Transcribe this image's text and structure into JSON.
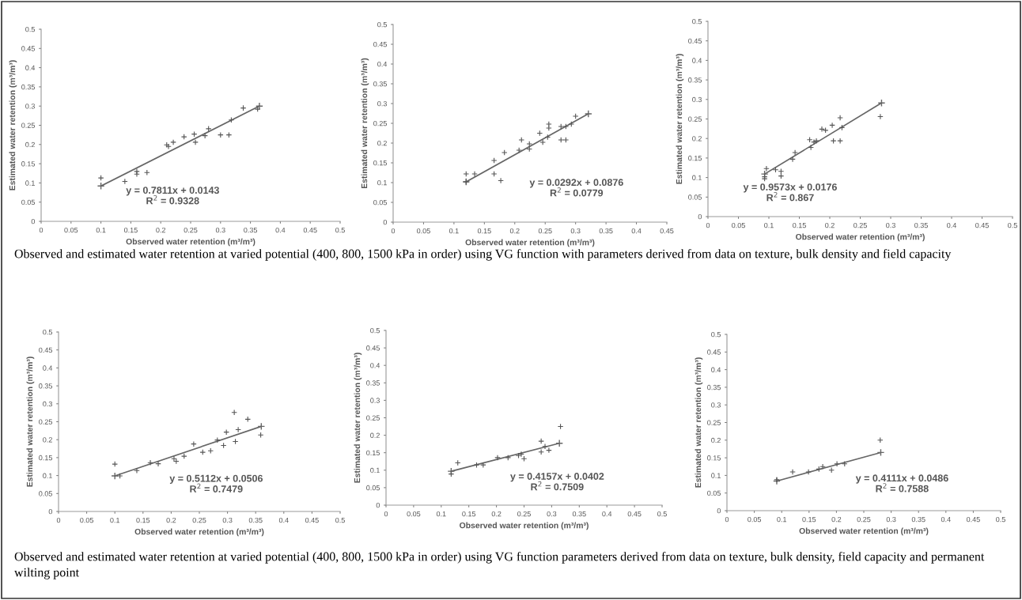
{
  "chart_data": [
    {
      "type": "scatter",
      "xlabel": "Observed water retention (m³/m³)",
      "ylabel": "Estimated water retention (m³/m³)",
      "xlim": [
        0,
        0.5
      ],
      "ylim": [
        0,
        0.5
      ],
      "xticks": [
        0,
        0.05,
        0.1,
        0.15,
        0.2,
        0.25,
        0.3,
        0.35,
        0.4,
        0.45,
        0.5
      ],
      "yticks": [
        0,
        0.05,
        0.1,
        0.15,
        0.2,
        0.25,
        0.3,
        0.35,
        0.4,
        0.45,
        0.5
      ],
      "marker": "cross",
      "grid": false,
      "series": [
        {
          "color": "#555555",
          "x": [
            0.1,
            0.14,
            0.16,
            0.16,
            0.177,
            0.21,
            0.213,
            0.221,
            0.239,
            0.256,
            0.258,
            0.274,
            0.28,
            0.3,
            0.314,
            0.318,
            0.338,
            0.362
          ],
          "values": [
            0.113,
            0.104,
            0.13,
            0.123,
            0.127,
            0.199,
            0.195,
            0.206,
            0.22,
            0.227,
            0.206,
            0.223,
            0.241,
            0.225,
            0.225,
            0.264,
            0.295,
            0.292
          ]
        },
        {
          "type": "line",
          "color": "#666666",
          "x": [
            0.1,
            0.365
          ],
          "values": [
            0.092,
            0.3
          ]
        }
      ],
      "annotations": [
        "y = 0.7811x + 0.0143\nR$^{2}$ = 0.9328",
        "Observed and estimated water retention at varied potential (400, 800, 1500 kPa in order) using VG function with parameters derived from data on texture, bulk density and field capacity"
      ]
    },
    {
      "type": "scatter",
      "xlabel": "Observed water retention (m³/m³)",
      "ylabel": "Estimated water retention (m³/m³)",
      "xlim": [
        0,
        0.45
      ],
      "ylim": [
        0,
        0.5
      ],
      "xticks": [
        0,
        0.05,
        0.1,
        0.15,
        0.2,
        0.25,
        0.3,
        0.35,
        0.4,
        0.45
      ],
      "yticks": [
        0,
        0.05,
        0.1,
        0.15,
        0.2,
        0.25,
        0.3,
        0.35,
        0.4,
        0.45,
        0.5
      ],
      "marker": "cross",
      "grid": false,
      "series": [
        {
          "color": "#555555",
          "x": [
            0.12,
            0.12,
            0.134,
            0.166,
            0.166,
            0.177,
            0.183,
            0.207,
            0.211,
            0.224,
            0.224,
            0.241,
            0.246,
            0.254,
            0.256,
            0.256,
            0.276,
            0.276,
            0.284,
            0.284,
            0.293,
            0.3
          ],
          "values": [
            0.102,
            0.122,
            0.122,
            0.156,
            0.122,
            0.105,
            0.176,
            0.182,
            0.208,
            0.198,
            0.185,
            0.225,
            0.202,
            0.215,
            0.248,
            0.238,
            0.242,
            0.208,
            0.208,
            0.242,
            0.248,
            0.268
          ]
        },
        {
          "type": "line",
          "color": "#666666",
          "x": [
            0.12,
            0.321
          ],
          "values": [
            0.102,
            0.274
          ]
        }
      ],
      "annotations": [
        "y = 0.0292x + 0.0876\nR$^{2}$ = 0.0779"
      ]
    },
    {
      "type": "scatter",
      "xlabel": "Observed water retention (m³/m³)",
      "ylabel": "Estimated water retention (m³/m³)",
      "xlim": [
        0,
        0.5
      ],
      "ylim": [
        0,
        0.5
      ],
      "xticks": [
        0,
        0.05,
        0.1,
        0.15,
        0.2,
        0.25,
        0.3,
        0.35,
        0.4,
        0.45,
        0.5
      ],
      "yticks": [
        0,
        0.05,
        0.1,
        0.15,
        0.2,
        0.25,
        0.3,
        0.35,
        0.4,
        0.45,
        0.5
      ],
      "marker": "cross",
      "grid": false,
      "series": [
        {
          "color": "#555555",
          "x": [
            0.093,
            0.093,
            0.096,
            0.111,
            0.12,
            0.12,
            0.139,
            0.143,
            0.167,
            0.169,
            0.174,
            0.178,
            0.187,
            0.193,
            0.204,
            0.206,
            0.217,
            0.217,
            0.22,
            0.283
          ],
          "values": [
            0.097,
            0.102,
            0.123,
            0.12,
            0.116,
            0.104,
            0.147,
            0.164,
            0.197,
            0.177,
            0.191,
            0.194,
            0.224,
            0.221,
            0.234,
            0.194,
            0.194,
            0.253,
            0.228,
            0.256
          ]
        },
        {
          "type": "line",
          "color": "#666666",
          "x": [
            0.093,
            0.285
          ],
          "values": [
            0.109,
            0.291
          ]
        }
      ],
      "annotations": [
        "y = 0.9573x + 0.0176\nR$^{2}$ = 0.867"
      ]
    },
    {
      "type": "scatter",
      "xlabel": "Observed water retention (m³/m³)",
      "ylabel": "Estimated water retention (m³/m³)",
      "xlim": [
        0,
        0.5
      ],
      "ylim": [
        0,
        0.5
      ],
      "xticks": [
        0,
        0.05,
        0.1,
        0.15,
        0.2,
        0.25,
        0.3,
        0.35,
        0.4,
        0.45,
        0.5
      ],
      "yticks": [
        0,
        0.05,
        0.1,
        0.15,
        0.2,
        0.25,
        0.3,
        0.35,
        0.4,
        0.45,
        0.5
      ],
      "marker": "cross",
      "grid": false,
      "series": [
        {
          "color": "#555555",
          "x": [
            0.1,
            0.109,
            0.139,
            0.163,
            0.177,
            0.205,
            0.209,
            0.223,
            0.24,
            0.256,
            0.27,
            0.282,
            0.293,
            0.298,
            0.312,
            0.314,
            0.319,
            0.336,
            0.359
          ],
          "values": [
            0.132,
            0.099,
            0.114,
            0.136,
            0.133,
            0.147,
            0.14,
            0.154,
            0.188,
            0.165,
            0.169,
            0.199,
            0.184,
            0.221,
            0.276,
            0.195,
            0.228,
            0.257,
            0.213
          ]
        },
        {
          "type": "line",
          "color": "#666666",
          "x": [
            0.1,
            0.36
          ],
          "values": [
            0.099,
            0.237
          ]
        }
      ],
      "annotations": [
        "y = 0.5112x + 0.0506\nR$^{2}$ = 0.7479",
        "Observed and estimated water retention at varied potential (400, 800, 1500 kPa in order) using VG function parameters derived from data on texture, bulk density, field capacity and permanent wilting point"
      ]
    },
    {
      "type": "scatter",
      "xlabel": "Observed water retention (m³/m³)",
      "ylabel": "Estimated water retention (m³/m³)",
      "xlim": [
        0,
        0.5
      ],
      "ylim": [
        0,
        0.5
      ],
      "xticks": [
        0,
        0.05,
        0.1,
        0.15,
        0.2,
        0.25,
        0.3,
        0.35,
        0.4,
        0.45,
        0.5
      ],
      "yticks": [
        0,
        0.05,
        0.1,
        0.15,
        0.2,
        0.25,
        0.3,
        0.35,
        0.4,
        0.45,
        0.5
      ],
      "marker": "cross",
      "grid": false,
      "series": [
        {
          "color": "#555555",
          "x": [
            0.118,
            0.13,
            0.164,
            0.176,
            0.202,
            0.221,
            0.24,
            0.245,
            0.25,
            0.281,
            0.281,
            0.288,
            0.295,
            0.316
          ],
          "values": [
            0.089,
            0.121,
            0.115,
            0.115,
            0.136,
            0.136,
            0.142,
            0.146,
            0.133,
            0.183,
            0.152,
            0.168,
            0.157,
            0.225
          ]
        },
        {
          "type": "line",
          "color": "#666666",
          "x": [
            0.118,
            0.314
          ],
          "values": [
            0.097,
            0.177
          ]
        }
      ],
      "annotations": [
        "y = 0.4157x + 0.0402\nR$^{2}$ = 0.7509"
      ]
    },
    {
      "type": "scatter",
      "xlabel": "Observed water retention (m³/m³)",
      "ylabel": "Estimated water retention (m³/m³)",
      "xlim": [
        0,
        0.5
      ],
      "ylim": [
        0,
        0.5
      ],
      "xticks": [
        0,
        0.05,
        0.1,
        0.15,
        0.2,
        0.25,
        0.3,
        0.35,
        0.4,
        0.45,
        0.5
      ],
      "yticks": [
        0,
        0.05,
        0.1,
        0.15,
        0.2,
        0.25,
        0.3,
        0.35,
        0.4,
        0.45,
        0.5
      ],
      "marker": "cross",
      "grid": false,
      "series": [
        {
          "color": "#555555",
          "x": [
            0.091,
            0.12,
            0.149,
            0.168,
            0.175,
            0.191,
            0.201,
            0.215,
            0.28
          ],
          "values": [
            0.088,
            0.11,
            0.11,
            0.118,
            0.125,
            0.115,
            0.133,
            0.133,
            0.2
          ]
        },
        {
          "type": "line",
          "color": "#666666",
          "x": [
            0.091,
            0.281
          ],
          "values": [
            0.084,
            0.165
          ]
        }
      ],
      "annotations": [
        "y = 0.4111x + 0.0486\nR$^{2}$ = 0.7588"
      ]
    }
  ]
}
